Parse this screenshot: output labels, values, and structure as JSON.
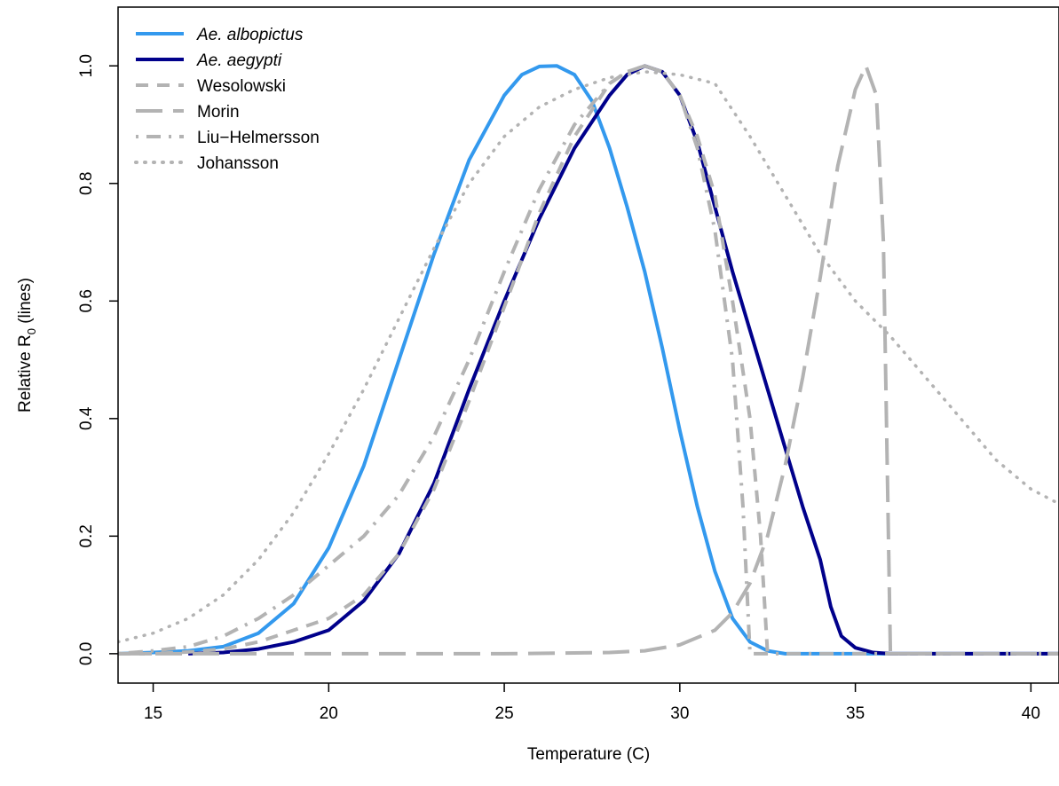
{
  "chart_data": {
    "type": "line",
    "title": "",
    "xlabel": "Temperature (C)",
    "ylabel_prefix": "Relative R",
    "ylabel_subscript": "0",
    "ylabel_suffix": " (lines)",
    "xlim": [
      14,
      40.8
    ],
    "ylim": [
      -0.05,
      1.1
    ],
    "x_ticks": [
      15,
      20,
      25,
      30,
      35,
      40
    ],
    "x_tick_labels": [
      "15",
      "20",
      "25",
      "30",
      "35",
      "40"
    ],
    "y_ticks": [
      0.0,
      0.2,
      0.4,
      0.6,
      0.8,
      1.0
    ],
    "y_tick_labels": [
      "0.0",
      "0.2",
      "0.4",
      "0.6",
      "0.8",
      "1.0"
    ],
    "grid": false,
    "legend_position": "top-left",
    "series": [
      {
        "name": "Ae. albopictus",
        "italic": true,
        "color": "#3399EE",
        "style": "solid",
        "points": [
          [
            14,
            0
          ],
          [
            15,
            0.002
          ],
          [
            16,
            0.005
          ],
          [
            17,
            0.012
          ],
          [
            18,
            0.035
          ],
          [
            19,
            0.085
          ],
          [
            20,
            0.18
          ],
          [
            21,
            0.32
          ],
          [
            22,
            0.5
          ],
          [
            23,
            0.68
          ],
          [
            24,
            0.84
          ],
          [
            25,
            0.95
          ],
          [
            25.5,
            0.985
          ],
          [
            26,
            0.999
          ],
          [
            26.5,
            1.0
          ],
          [
            27,
            0.985
          ],
          [
            27.5,
            0.94
          ],
          [
            28,
            0.86
          ],
          [
            28.5,
            0.76
          ],
          [
            29,
            0.65
          ],
          [
            29.5,
            0.52
          ],
          [
            30,
            0.38
          ],
          [
            30.5,
            0.25
          ],
          [
            31,
            0.14
          ],
          [
            31.5,
            0.06
          ],
          [
            32,
            0.02
          ],
          [
            32.5,
            0.005
          ],
          [
            33,
            0
          ],
          [
            40.8,
            0
          ]
        ]
      },
      {
        "name": "Ae. aegypti",
        "italic": true,
        "color": "#00008B",
        "style": "solid",
        "points": [
          [
            16,
            0
          ],
          [
            17,
            0.002
          ],
          [
            18,
            0.008
          ],
          [
            19,
            0.02
          ],
          [
            20,
            0.04
          ],
          [
            21,
            0.09
          ],
          [
            22,
            0.17
          ],
          [
            23,
            0.29
          ],
          [
            24,
            0.45
          ],
          [
            25,
            0.6
          ],
          [
            26,
            0.74
          ],
          [
            27,
            0.86
          ],
          [
            28,
            0.95
          ],
          [
            28.5,
            0.985
          ],
          [
            29,
            1.0
          ],
          [
            29.5,
            0.99
          ],
          [
            30,
            0.95
          ],
          [
            30.5,
            0.87
          ],
          [
            31,
            0.76
          ],
          [
            31.5,
            0.65
          ],
          [
            32,
            0.55
          ],
          [
            32.5,
            0.45
          ],
          [
            33,
            0.35
          ],
          [
            33.5,
            0.25
          ],
          [
            34,
            0.16
          ],
          [
            34.3,
            0.08
          ],
          [
            34.6,
            0.03
          ],
          [
            35,
            0.01
          ],
          [
            35.5,
            0.002
          ],
          [
            36,
            0
          ],
          [
            40.8,
            0
          ]
        ]
      },
      {
        "name": "Wesolowski",
        "italic": false,
        "color": "#B3B3B3",
        "style": "dashed",
        "points": [
          [
            14,
            0
          ],
          [
            15,
            0
          ],
          [
            16,
            0.003
          ],
          [
            17,
            0.008
          ],
          [
            18,
            0.02
          ],
          [
            19,
            0.04
          ],
          [
            20,
            0.06
          ],
          [
            21,
            0.1
          ],
          [
            22,
            0.17
          ],
          [
            23,
            0.28
          ],
          [
            24,
            0.43
          ],
          [
            25,
            0.59
          ],
          [
            26,
            0.75
          ],
          [
            27,
            0.88
          ],
          [
            28,
            0.97
          ],
          [
            28.5,
            0.99
          ],
          [
            29,
            1.0
          ],
          [
            29.5,
            0.99
          ],
          [
            30,
            0.95
          ],
          [
            30.5,
            0.88
          ],
          [
            31,
            0.78
          ],
          [
            31.5,
            0.6
          ],
          [
            32,
            0.4
          ],
          [
            32.3,
            0.2
          ],
          [
            32.5,
            0
          ]
        ]
      },
      {
        "name": "Morin",
        "italic": false,
        "color": "#B3B3B3",
        "style": "longdash",
        "points": [
          [
            14,
            0
          ],
          [
            25,
            0
          ],
          [
            28,
            0.002
          ],
          [
            29,
            0.005
          ],
          [
            30,
            0.015
          ],
          [
            31,
            0.04
          ],
          [
            31.5,
            0.07
          ],
          [
            32,
            0.12
          ],
          [
            32.5,
            0.2
          ],
          [
            33,
            0.32
          ],
          [
            33.5,
            0.47
          ],
          [
            34,
            0.64
          ],
          [
            34.5,
            0.83
          ],
          [
            35,
            0.96
          ],
          [
            35.3,
            1.0
          ],
          [
            35.6,
            0.95
          ],
          [
            35.8,
            0.7
          ],
          [
            36,
            0
          ],
          [
            40.8,
            0
          ]
        ]
      },
      {
        "name": "Liu-Helmersson",
        "italic": false,
        "color": "#B3B3B3",
        "style": "dashdot",
        "points": [
          [
            14,
            0
          ],
          [
            15,
            0.005
          ],
          [
            16,
            0.012
          ],
          [
            17,
            0.03
          ],
          [
            18,
            0.06
          ],
          [
            19,
            0.1
          ],
          [
            20,
            0.15
          ],
          [
            21,
            0.2
          ],
          [
            22,
            0.27
          ],
          [
            23,
            0.37
          ],
          [
            24,
            0.5
          ],
          [
            25,
            0.65
          ],
          [
            26,
            0.79
          ],
          [
            27,
            0.9
          ],
          [
            28,
            0.97
          ],
          [
            28.5,
            0.99
          ],
          [
            29,
            1.0
          ],
          [
            29.5,
            0.99
          ],
          [
            30,
            0.95
          ],
          [
            30.5,
            0.86
          ],
          [
            31,
            0.72
          ],
          [
            31.5,
            0.5
          ],
          [
            31.8,
            0.25
          ],
          [
            32,
            0
          ],
          [
            40.8,
            0
          ]
        ]
      },
      {
        "name": "Johansson",
        "italic": false,
        "color": "#B3B3B3",
        "style": "dotted",
        "points": [
          [
            14,
            0.02
          ],
          [
            15,
            0.035
          ],
          [
            16,
            0.06
          ],
          [
            17,
            0.1
          ],
          [
            18,
            0.16
          ],
          [
            19,
            0.24
          ],
          [
            20,
            0.34
          ],
          [
            21,
            0.45
          ],
          [
            22,
            0.57
          ],
          [
            23,
            0.69
          ],
          [
            24,
            0.8
          ],
          [
            25,
            0.88
          ],
          [
            26,
            0.93
          ],
          [
            27,
            0.96
          ],
          [
            28,
            0.98
          ],
          [
            29,
            0.99
          ],
          [
            30,
            0.985
          ],
          [
            31,
            0.97
          ],
          [
            32,
            0.88
          ],
          [
            33,
            0.78
          ],
          [
            34,
            0.68
          ],
          [
            35,
            0.6
          ],
          [
            36,
            0.54
          ],
          [
            37,
            0.47
          ],
          [
            38,
            0.4
          ],
          [
            39,
            0.33
          ],
          [
            40,
            0.28
          ],
          [
            40.8,
            0.255
          ]
        ]
      }
    ]
  }
}
